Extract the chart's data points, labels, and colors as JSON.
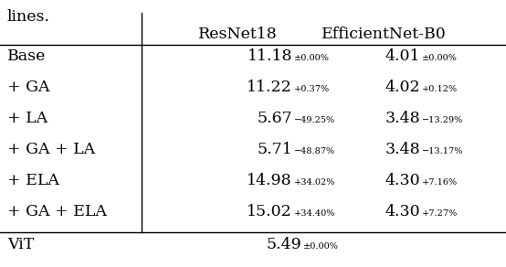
{
  "header_text": "lines.",
  "col_headers": [
    "ResNet18",
    "EfficientNet-B0"
  ],
  "rows": [
    {
      "label": "Base",
      "resnet": "11.18",
      "resnet_sub": "±0.00%",
      "effnet": "4.01",
      "effnet_sub": "±0.00%"
    },
    {
      "label": "+ GA",
      "resnet": "11.22",
      "resnet_sub": "+0.37%",
      "effnet": "4.02",
      "effnet_sub": "+0.12%"
    },
    {
      "label": "+ LA",
      "resnet": "5.67",
      "resnet_sub": "−49.25%",
      "effnet": "3.48",
      "effnet_sub": "−13.29%"
    },
    {
      "label": "+ GA + LA",
      "resnet": "5.71",
      "resnet_sub": "−48.87%",
      "effnet": "3.48",
      "effnet_sub": "−13.17%"
    },
    {
      "label": "+ ELA",
      "resnet": "14.98",
      "resnet_sub": "+34.02%",
      "effnet": "4.30",
      "effnet_sub": "+7.16%"
    },
    {
      "label": "+ GA + ELA",
      "resnet": "15.02",
      "resnet_sub": "+34.40%",
      "effnet": "4.30",
      "effnet_sub": "+7.27%"
    }
  ],
  "vit_row": {
    "label": "ViT",
    "value": "5.49",
    "value_sub": "±0.00%"
  },
  "main_fontsize": 12.5,
  "sub_fontsize": 7.0,
  "header_fontsize": 12.5,
  "background_color": "#ffffff"
}
